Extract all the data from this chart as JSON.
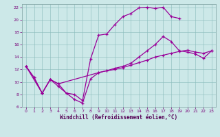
{
  "xlabel": "Windchill (Refroidissement éolien,°C)",
  "background_color": "#cce8e8",
  "line_color": "#990099",
  "xlim": [
    -0.5,
    23.5
  ],
  "ylim": [
    6,
    22.5
  ],
  "yticks": [
    6,
    8,
    10,
    12,
    14,
    16,
    18,
    20,
    22
  ],
  "xticks": [
    0,
    1,
    2,
    3,
    4,
    5,
    6,
    7,
    8,
    9,
    10,
    11,
    12,
    13,
    14,
    15,
    16,
    17,
    18,
    19,
    20,
    21,
    22,
    23
  ],
  "series": [
    {
      "x": [
        0,
        1,
        2,
        3,
        4,
        5,
        6,
        7,
        8,
        9,
        10,
        11,
        12,
        13,
        14,
        15,
        16,
        17,
        18,
        19,
        20,
        21,
        22,
        23
      ],
      "y": [
        12.5,
        10.7,
        8.2,
        10.4,
        9.7,
        8.2,
        7.2,
        6.6,
        10.5,
        11.5,
        11.8,
        12.0,
        12.3,
        12.7,
        13.1,
        13.5,
        14.0,
        14.3,
        14.6,
        14.9,
        15.1,
        14.8,
        14.6,
        15.0
      ]
    },
    {
      "x": [
        0,
        1,
        2,
        3,
        4,
        5,
        6,
        7,
        8,
        9,
        10,
        11,
        12,
        13,
        14,
        15,
        16,
        17,
        18,
        19
      ],
      "y": [
        12.5,
        10.7,
        8.2,
        10.4,
        9.3,
        8.2,
        8.0,
        7.0,
        13.7,
        17.5,
        17.7,
        19.2,
        20.5,
        21.0,
        21.9,
        22.0,
        21.8,
        22.0,
        20.5,
        20.2
      ]
    },
    {
      "x": [
        0,
        2,
        3,
        4,
        9,
        10,
        11,
        12,
        13,
        14,
        15,
        16,
        17,
        18,
        19,
        20,
        21,
        22,
        23
      ],
      "y": [
        12.5,
        8.2,
        10.4,
        9.7,
        11.5,
        11.8,
        12.2,
        12.5,
        13.0,
        14.0,
        15.0,
        16.0,
        17.3,
        16.5,
        15.0,
        14.8,
        14.5,
        13.8,
        15.0
      ]
    }
  ]
}
